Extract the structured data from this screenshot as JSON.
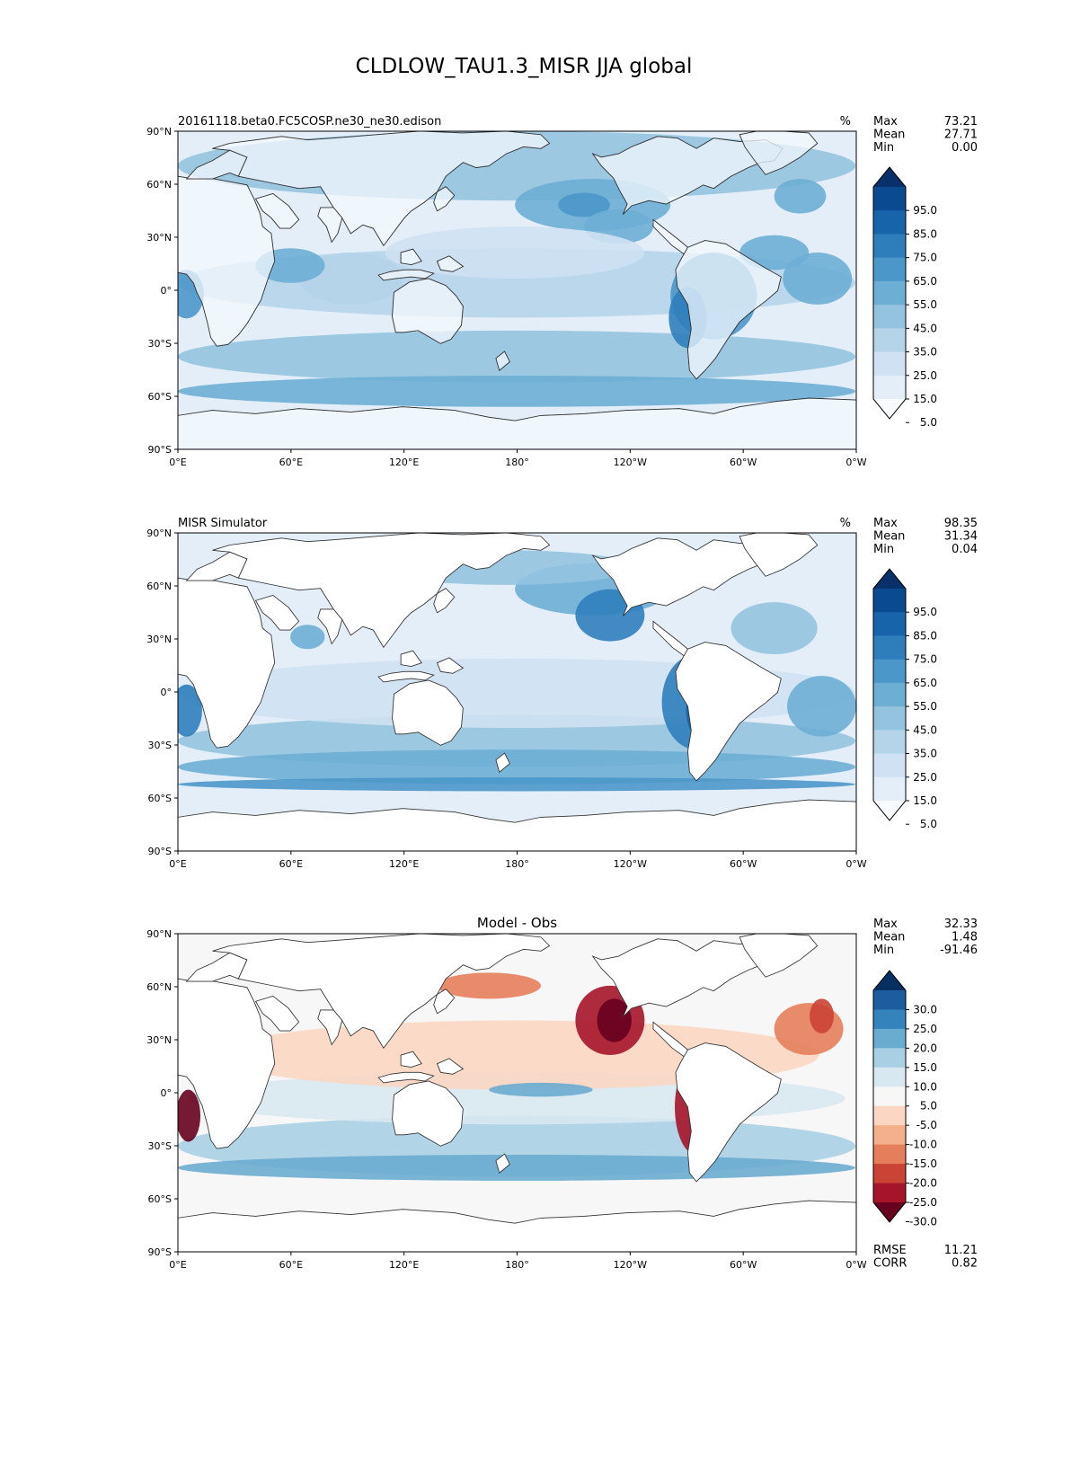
{
  "title": "CLDLOW_TAU1.3_MISR JJA global",
  "x_ticks": [
    "0°E",
    "60°E",
    "120°E",
    "180°",
    "120°W",
    "60°W",
    "0°W"
  ],
  "y_ticks": [
    "90°N",
    "60°N",
    "30°N",
    "0°",
    "30°S",
    "60°S",
    "90°S"
  ],
  "panels": [
    {
      "id": "test",
      "left_title": "20161118.beta0.FC5COSP.ne30_ne30.edison",
      "center_title": "",
      "units": "%",
      "stats": [
        {
          "label": "Max",
          "value": "73.21"
        },
        {
          "label": "Mean",
          "value": "27.71"
        },
        {
          "label": "Min",
          "value": "0.00"
        }
      ],
      "colorbar": {
        "labels": [
          "95.0",
          "85.0",
          "75.0",
          "65.0",
          "55.0",
          "45.0",
          "35.0",
          "25.0",
          "15.0",
          "5.0"
        ],
        "colors": [
          "#f7fbff",
          "#e3eef9",
          "#cfe1f2",
          "#b5d4e9",
          "#93c3df",
          "#6daed5",
          "#4b97c9",
          "#2f7ebc",
          "#1864aa",
          "#0a4a90",
          "#08306b"
        ]
      },
      "footer_stats": []
    },
    {
      "id": "ref",
      "left_title": "MISR Simulator",
      "center_title": "",
      "units": "%",
      "stats": [
        {
          "label": "Max",
          "value": "98.35"
        },
        {
          "label": "Mean",
          "value": "31.34"
        },
        {
          "label": "Min",
          "value": "0.04"
        }
      ],
      "colorbar": {
        "labels": [
          "95.0",
          "85.0",
          "75.0",
          "65.0",
          "55.0",
          "45.0",
          "35.0",
          "25.0",
          "15.0",
          "5.0"
        ],
        "colors": [
          "#f7fbff",
          "#e3eef9",
          "#cfe1f2",
          "#b5d4e9",
          "#93c3df",
          "#6daed5",
          "#4b97c9",
          "#2f7ebc",
          "#1864aa",
          "#0a4a90",
          "#08306b"
        ]
      },
      "footer_stats": []
    },
    {
      "id": "diff",
      "left_title": "",
      "center_title": "Model - Obs",
      "units": "",
      "stats": [
        {
          "label": "Max",
          "value": "32.33"
        },
        {
          "label": "Mean",
          "value": "1.48"
        },
        {
          "label": "Min",
          "value": "-91.46"
        }
      ],
      "colorbar": {
        "labels": [
          "30.0",
          "25.0",
          "20.0",
          "15.0",
          "10.0",
          "5.0",
          "-5.0",
          "-10.0",
          "-15.0",
          "-20.0",
          "-25.0",
          "-30.0"
        ],
        "colors": [
          "#67001f",
          "#a51429",
          "#cb4335",
          "#e47e5b",
          "#f4af8c",
          "#fbd6c2",
          "#f7f7f7",
          "#d8e8f1",
          "#a9cfe4",
          "#6aacd0",
          "#3583bd",
          "#1c5c9f",
          "#053061"
        ]
      },
      "footer_stats": [
        {
          "label": "RMSE",
          "value": "11.21"
        },
        {
          "label": "CORR",
          "value": "0.82"
        }
      ]
    }
  ]
}
